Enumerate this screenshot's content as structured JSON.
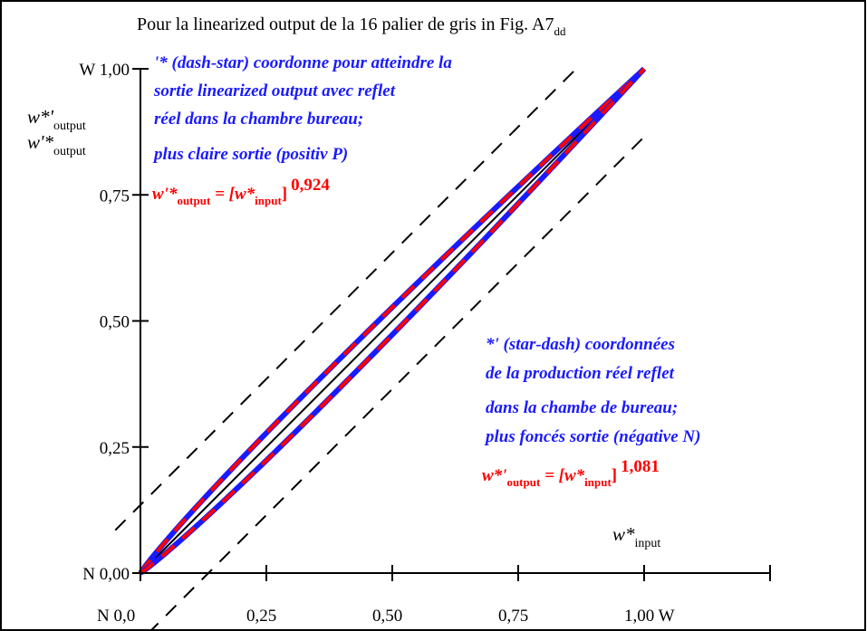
{
  "chart_data": {
    "type": "line",
    "title_main": "Pour la linearized output de la 16 palier de gris in Fig. A7",
    "title_sub": "dd",
    "x_axis": {
      "ticks": [
        0.0,
        0.25,
        0.5,
        0.75,
        1.0
      ],
      "tick_labels": [
        "N  0,0",
        "0,25",
        "0,50",
        "0,75",
        "1,00  W"
      ],
      "label_main": "w*",
      "label_sub": "input",
      "range": [
        0,
        1.0
      ]
    },
    "y_axis": {
      "ticks": [
        0.0,
        0.25,
        0.5,
        0.75,
        1.0
      ],
      "tick_labels": [
        "N 0,00",
        "0,25",
        "0,50",
        "0,75",
        "W 1,00"
      ],
      "label1_main": "w*'",
      "label1_sub": "output",
      "label2_main": "w'*",
      "label2_sub": "output",
      "range": [
        0,
        1.0
      ]
    },
    "series": [
      {
        "style": "solid-black",
        "x": [
          0,
          1
        ],
        "y": [
          0,
          1
        ]
      },
      {
        "style": "dashed-black",
        "x": [
          0,
          1
        ],
        "y": [
          0.135,
          1.135
        ]
      },
      {
        "style": "dashed-black",
        "x": [
          0,
          1
        ],
        "y": [
          -0.135,
          0.865
        ]
      },
      {
        "style": "dashed-red-blue",
        "exponent": 0.924
      },
      {
        "style": "dashed-red-blue",
        "exponent": 1.081
      }
    ],
    "annotation_top": {
      "lines": [
        "'* (dash-star) coordonne pour atteindre la",
        "sortie linearized output avec reflet",
        "réel dans la chambre bureau;",
        "plus claire sortie (positiv P)"
      ],
      "formula": {
        "left_main": "w'*",
        "left_sub": "output",
        "mid": " = [w*",
        "mid_sub": "input",
        "close": "]",
        "exponent": "0,924"
      }
    },
    "annotation_bottom": {
      "lines": [
        "*' (star-dash) coordonnées",
        "de la production réel reflet",
        "dans la chambe de bureau;",
        "plus foncés sortie (négative N)"
      ],
      "formula": {
        "left_main": "w*'",
        "left_sub": "output",
        "mid": " = [w*",
        "mid_sub": "input",
        "close": "]",
        "exponent": "1,081"
      }
    },
    "colors": {
      "axis": "#000000",
      "red": "#ff0000",
      "blue": "#1a1aff"
    },
    "grid": false
  }
}
